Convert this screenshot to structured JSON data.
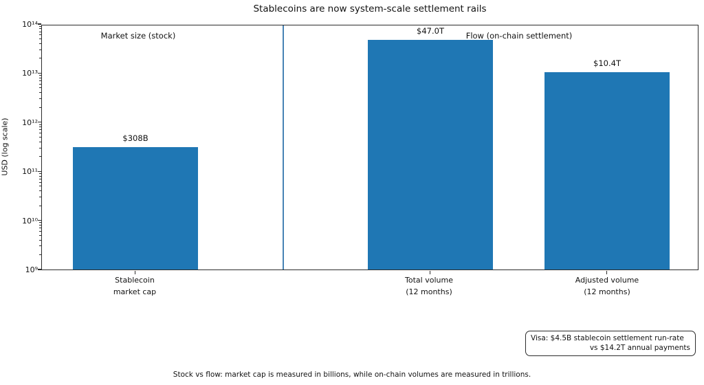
{
  "title": "Stablecoins are now system-scale settlement rails",
  "section_labels": {
    "stock": "Market size (stock)",
    "flow": "Flow (on-chain settlement)"
  },
  "annotation_box": {
    "line1": "Visa: $4.5B stablecoin settlement run-rate",
    "line2": "vs $14.2T annual payments"
  },
  "footer": "Stock vs flow: market cap is measured in billions, while on-chain volumes are measured in trillions.",
  "colors": {
    "bar": "#1f77b4",
    "divider": "#4682b4",
    "text": "#111111"
  },
  "chart_data": {
    "type": "bar",
    "title": "Stablecoins are now system-scale settlement rails",
    "xlabel": "",
    "ylabel": "USD (log scale)",
    "yscale": "log",
    "ylim": [
      1000000000,
      100000000000000
    ],
    "grid": false,
    "legend": false,
    "categories": [
      "Stablecoin\nmarket cap",
      "Total volume\n(12 months)",
      "Adjusted volume\n(12 months)"
    ],
    "values": [
      308000000000,
      47000000000000,
      10400000000000
    ],
    "value_labels": [
      "$308B",
      "$47.0T",
      "$10.4T"
    ],
    "ytick_labels": [
      "10⁹",
      "10¹⁰",
      "10¹¹",
      "10¹²",
      "10¹³",
      "10¹⁴"
    ],
    "group_divider": "vertical line between 'Stablecoin market cap' (stock group) and volume bars (flow group)",
    "annotations": [
      "Market size (stock)",
      "Flow (on-chain settlement)",
      "Visa: $4.5B stablecoin settlement run-rate vs $14.2T annual payments"
    ]
  }
}
